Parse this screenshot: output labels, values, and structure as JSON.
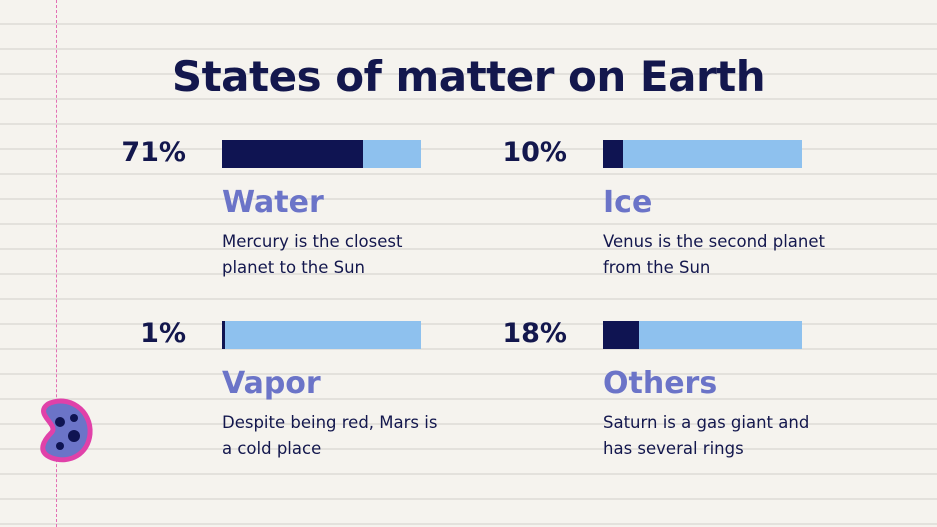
{
  "chart_data": {
    "type": "progress",
    "title": "States of matter on Earth",
    "categories": [
      "Water",
      "Ice",
      "Vapor",
      "Others"
    ],
    "values": [
      71,
      10,
      1,
      18
    ],
    "value_labels": [
      "71%",
      "10%",
      "1%",
      "18%"
    ],
    "descriptions": [
      "Mercury is the closest planet to the Sun",
      "Venus is the second planet from the Sun",
      "Despite being red, Mars is a cold place",
      "Saturn is a gas giant and has several rings"
    ],
    "xlim": [
      0,
      100
    ],
    "color": "#0f1452",
    "track_color": "#8ec1ee"
  }
}
